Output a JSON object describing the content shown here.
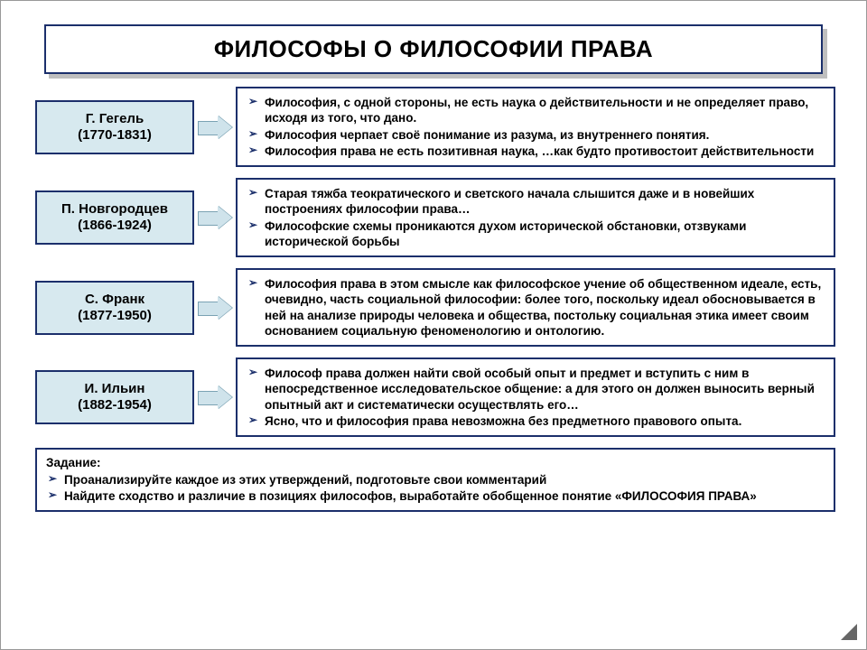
{
  "title": "ФИЛОСОФЫ О ФИЛОСОФИИ ПРАВА",
  "title_fontsize": 26,
  "colors": {
    "border": "#1b2f6b",
    "phil_bg": "#d7e9ef",
    "arrow_fill": "#cfe3eb",
    "page_bg": "#ffffff",
    "bullet": "#1b2f6b"
  },
  "fontsize": {
    "phil": 15,
    "quote": 13.5,
    "task": 13.5
  },
  "rows": [
    {
      "name": "Г. Гегель",
      "years": "(1770-1831)",
      "bullets": [
        "Философия, с одной стороны, не есть наука о действительности и не определяет право, исходя из того, что дано.",
        "Философия черпает своё понимание из разума, из внутреннего понятия.",
        "Философия права не есть позитивная наука, …как будто противостоит действительности"
      ]
    },
    {
      "name": "П. Новгородцев",
      "years": "(1866-1924)",
      "bullets": [
        "Старая тяжба теократического и светского начала слышится даже и в новейших построениях философии права…",
        "Философские схемы проникаются духом исторической обстановки, отзвуками исторической борьбы"
      ]
    },
    {
      "name": "С. Франк",
      "years": "(1877-1950)",
      "bullets": [
        "Философия права в этом смысле как философское учение об общественном идеале, есть, очевидно, часть социальной философии: более того, поскольку идеал обосновывается в ней на анализе природы человека и общества, постольку социальная этика имеет своим основанием социальную феноменологию и онтологию."
      ]
    },
    {
      "name": "И. Ильин",
      "years": "(1882-1954)",
      "bullets": [
        "Философ права должен найти свой особый опыт и предмет и вступить с ним в непосредственное исследовательское общение: а для этого он должен выносить верный опытный акт и систематически осуществлять его…",
        "Ясно, что и философия права невозможна без предметного правового опыта."
      ]
    }
  ],
  "task": {
    "heading": "Задание:",
    "items": [
      "Проанализируйте каждое из этих утверждений, подготовьте свои комментарий",
      "Найдите сходство и различие в позициях философов, выработайте обобщенное понятие «ФИЛОСОФИЯ ПРАВА»"
    ]
  }
}
